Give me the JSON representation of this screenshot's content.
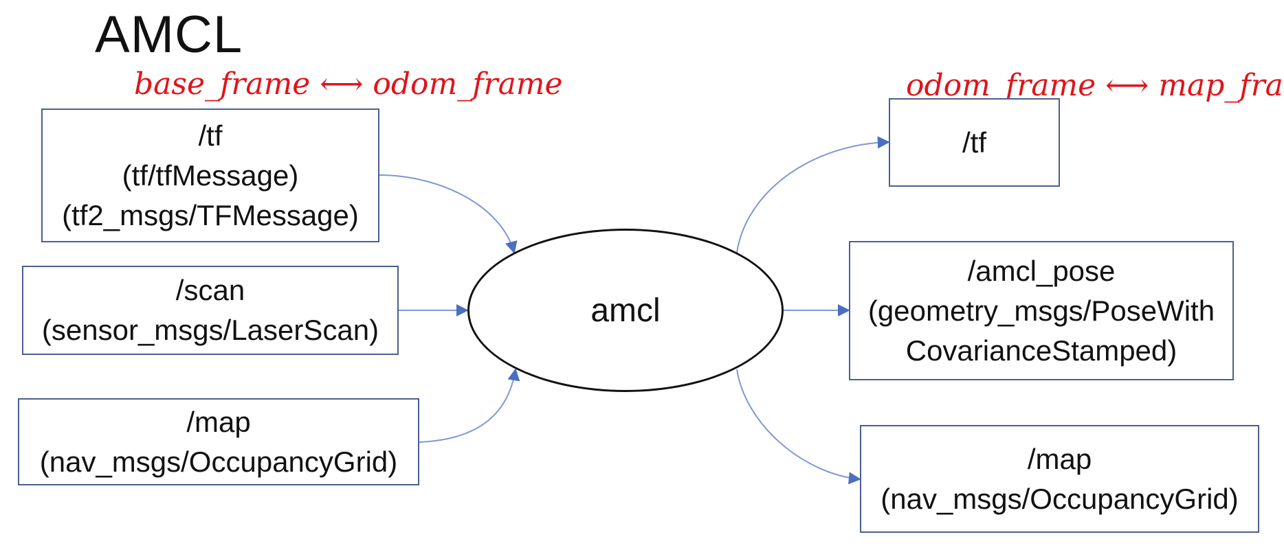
{
  "title": "AMCL",
  "node": {
    "label": "amcl"
  },
  "inputs": {
    "tf": {
      "lines": [
        "/tf",
        "(tf/tfMessage)",
        "(tf2_msgs/TFMessage)"
      ]
    },
    "scan": {
      "lines": [
        "/scan",
        "(sensor_msgs/LaserScan)"
      ]
    },
    "map": {
      "lines": [
        "/map",
        "(nav_msgs/OccupancyGrid)"
      ]
    }
  },
  "outputs": {
    "tf": {
      "lines": [
        "/tf"
      ]
    },
    "amcl_pose": {
      "lines": [
        "/amcl_pose",
        "(geometry_msgs/PoseWith",
        "CovarianceStamped)"
      ]
    },
    "map": {
      "lines": [
        "/map",
        "(nav_msgs/OccupancyGrid)"
      ]
    }
  },
  "annotations": {
    "left": "base_frame ⟷ odom_frame",
    "right": "odom_frame ⟷ map_frame"
  },
  "colors": {
    "box_border": "#4a5f8f",
    "arrow": "#6f8fd0",
    "handwriting": "#e0141b",
    "ellipse_border": "#111111"
  }
}
